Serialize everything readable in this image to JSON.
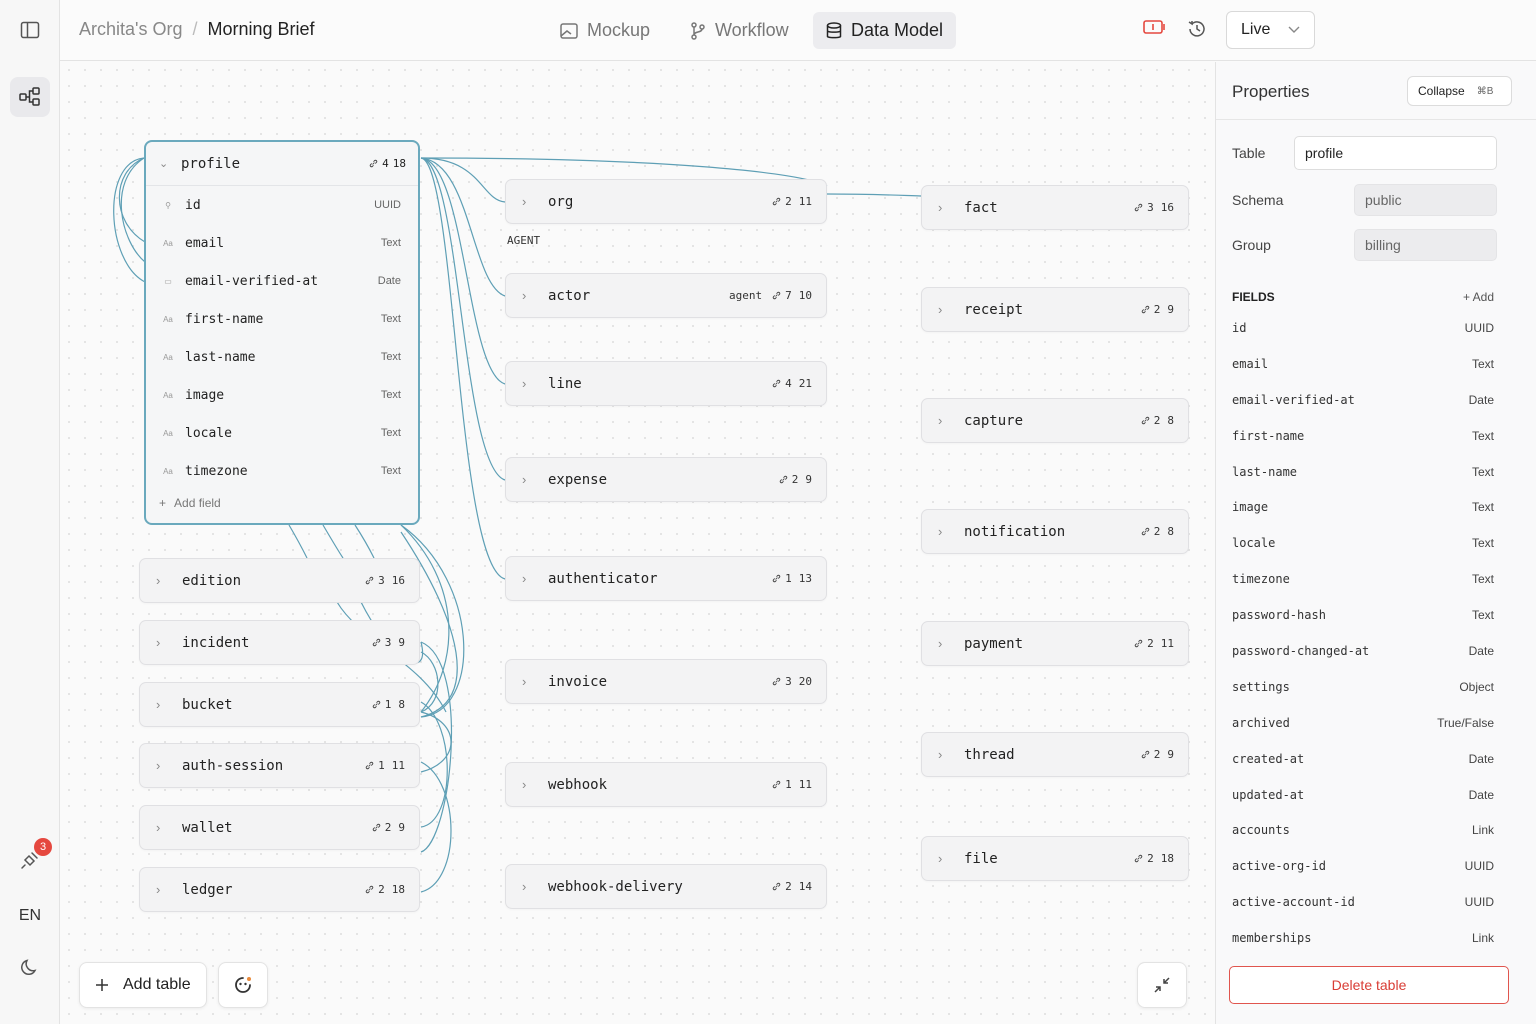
{
  "breadcrumb": {
    "org": "Archita's Org",
    "separator": "/",
    "project": "Morning Brief"
  },
  "view_tabs": [
    {
      "label": "Mockup",
      "icon": "image-icon",
      "active": false
    },
    {
      "label": "Workflow",
      "icon": "git-branch-icon",
      "active": false
    },
    {
      "label": "Data Model",
      "icon": "database-icon",
      "active": true
    }
  ],
  "environment": {
    "value": "Live"
  },
  "sidebar": {
    "badge_count": "3",
    "language": "EN"
  },
  "canvas": {
    "selected_table": {
      "name": "profile",
      "links": "4",
      "field_count": "18",
      "fields": [
        {
          "name": "id",
          "type": "UUID",
          "icon": "key-icon"
        },
        {
          "name": "email",
          "type": "Text",
          "icon": "text-icon"
        },
        {
          "name": "email-verified-at",
          "type": "Date",
          "icon": "calendar-icon"
        },
        {
          "name": "first-name",
          "type": "Text",
          "icon": "text-icon"
        },
        {
          "name": "last-name",
          "type": "Text",
          "icon": "text-icon"
        },
        {
          "name": "image",
          "type": "Text",
          "icon": "text-icon"
        },
        {
          "name": "locale",
          "type": "Text",
          "icon": "text-icon"
        },
        {
          "name": "timezone",
          "type": "Text",
          "icon": "text-icon"
        }
      ],
      "add_field_label": "Add field"
    },
    "group_label": "AGENT",
    "tables": [
      {
        "name": "edition",
        "links": "3",
        "fields": "16"
      },
      {
        "name": "incident",
        "links": "3",
        "fields": "9"
      },
      {
        "name": "bucket",
        "links": "1",
        "fields": "8"
      },
      {
        "name": "auth-session",
        "links": "1",
        "fields": "11"
      },
      {
        "name": "wallet",
        "links": "2",
        "fields": "9"
      },
      {
        "name": "ledger",
        "links": "2",
        "fields": "18"
      },
      {
        "name": "org",
        "links": "2",
        "fields": "11"
      },
      {
        "name": "actor",
        "tag": "agent",
        "links": "7",
        "fields": "10"
      },
      {
        "name": "line",
        "links": "4",
        "fields": "21"
      },
      {
        "name": "expense",
        "links": "2",
        "fields": "9"
      },
      {
        "name": "authenticator",
        "links": "1",
        "fields": "13"
      },
      {
        "name": "invoice",
        "links": "3",
        "fields": "20"
      },
      {
        "name": "webhook",
        "links": "1",
        "fields": "11"
      },
      {
        "name": "webhook-delivery",
        "links": "2",
        "fields": "14"
      },
      {
        "name": "fact",
        "links": "3",
        "fields": "16"
      },
      {
        "name": "receipt",
        "links": "2",
        "fields": "9"
      },
      {
        "name": "capture",
        "links": "2",
        "fields": "8"
      },
      {
        "name": "notification",
        "links": "2",
        "fields": "8"
      },
      {
        "name": "payment",
        "links": "2",
        "fields": "11"
      },
      {
        "name": "thread",
        "links": "2",
        "fields": "9"
      },
      {
        "name": "file",
        "links": "2",
        "fields": "18"
      }
    ],
    "add_table_label": "Add table"
  },
  "properties": {
    "title": "Properties",
    "collapse_label": "Collapse",
    "collapse_shortcut": "⌘B",
    "table_label": "Table",
    "table_value": "profile",
    "schema_label": "Schema",
    "schema_value": "public",
    "group_label": "Group",
    "group_value": "billing",
    "fields_title": "FIELDS",
    "add_label": "+ Add",
    "fields": [
      {
        "name": "id",
        "type": "UUID"
      },
      {
        "name": "email",
        "type": "Text"
      },
      {
        "name": "email-verified-at",
        "type": "Date"
      },
      {
        "name": "first-name",
        "type": "Text"
      },
      {
        "name": "last-name",
        "type": "Text"
      },
      {
        "name": "image",
        "type": "Text"
      },
      {
        "name": "locale",
        "type": "Text"
      },
      {
        "name": "timezone",
        "type": "Text"
      },
      {
        "name": "password-hash",
        "type": "Text"
      },
      {
        "name": "password-changed-at",
        "type": "Date"
      },
      {
        "name": "settings",
        "type": "Object"
      },
      {
        "name": "archived",
        "type": "True/False"
      },
      {
        "name": "created-at",
        "type": "Date"
      },
      {
        "name": "updated-at",
        "type": "Date"
      },
      {
        "name": "accounts",
        "type": "Link"
      },
      {
        "name": "active-org-id",
        "type": "UUID"
      },
      {
        "name": "active-account-id",
        "type": "UUID"
      },
      {
        "name": "memberships",
        "type": "Link"
      }
    ],
    "delete_label": "Delete table"
  },
  "colors": {
    "edge": "#5e9fb5",
    "selected_border": "#6aa9bd",
    "danger": "#d93d35",
    "badge": "#e5483f"
  }
}
